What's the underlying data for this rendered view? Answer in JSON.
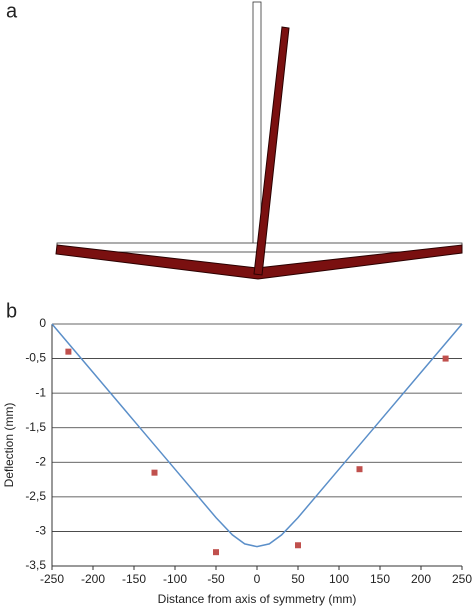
{
  "panel_labels": [
    "a",
    "b"
  ],
  "chart_data": {
    "type": "line",
    "x_label": "Distance from axis of symmetry (mm)",
    "y_label": "Deflection (mm)",
    "xlim": [
      -250,
      250
    ],
    "xticks": [
      -250,
      -200,
      -150,
      -100,
      -50,
      0,
      50,
      100,
      150,
      200,
      250
    ],
    "ylim": [
      -3.5,
      0
    ],
    "yticks": [
      0,
      {
        "value": -0.5,
        "label": "-0,5"
      },
      -1,
      {
        "value": -1.5,
        "label": "-1,5"
      },
      -2,
      {
        "value": -2.5,
        "label": "-2,5"
      },
      -3,
      {
        "value": -3.5,
        "label": "-3,5"
      }
    ],
    "grid": true,
    "series": [
      {
        "type": "line",
        "color": "#5b8fc9",
        "x": [
          -250,
          -200,
          -150,
          -100,
          -50,
          -30,
          -15,
          0,
          15,
          30,
          50,
          100,
          150,
          200,
          250
        ],
        "values": [
          0,
          -0.7,
          -1.4,
          -2.1,
          -2.8,
          -3.05,
          -3.18,
          -3.22,
          -3.18,
          -3.05,
          -2.8,
          -2.1,
          -1.4,
          -0.7,
          0
        ]
      },
      {
        "type": "scatter",
        "color": "#c0504d",
        "x": [
          -230,
          -125,
          -50,
          50,
          125,
          230
        ],
        "values": [
          -0.4,
          -2.15,
          -3.3,
          -3.2,
          -2.1,
          -0.5
        ]
      }
    ]
  }
}
